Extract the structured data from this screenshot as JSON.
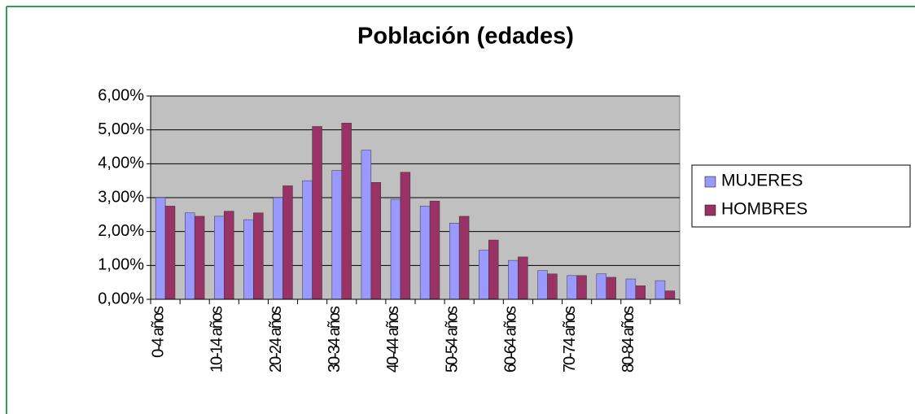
{
  "chart_data": {
    "type": "bar",
    "title": "Población (edades)",
    "categories": [
      "0-4 años",
      null,
      "10-14 años",
      null,
      "20-24 años",
      null,
      "30-34 años",
      null,
      "40-44 años",
      null,
      "50-54 años",
      null,
      "60-64 años",
      null,
      "70-74 años",
      null,
      "80-84 años",
      null
    ],
    "series": [
      {
        "name": "MUJERES",
        "color": "#9999ff",
        "values": [
          3.0,
          2.55,
          2.45,
          2.35,
          3.0,
          3.5,
          3.8,
          4.4,
          2.95,
          2.75,
          2.25,
          1.45,
          1.15,
          0.85,
          0.7,
          0.75,
          0.6,
          0.55
        ]
      },
      {
        "name": "HOMBRES",
        "color": "#993366",
        "values": [
          2.75,
          2.45,
          2.6,
          2.55,
          3.35,
          5.1,
          5.2,
          3.45,
          3.75,
          2.9,
          2.45,
          1.75,
          1.25,
          0.75,
          0.7,
          0.65,
          0.4,
          0.25
        ]
      }
    ],
    "ylim": [
      0,
      6
    ],
    "yticks": [
      {
        "value": 0,
        "label": "0,00%"
      },
      {
        "value": 1,
        "label": "1,00%"
      },
      {
        "value": 2,
        "label": "2,00%"
      },
      {
        "value": 3,
        "label": "3,00%"
      },
      {
        "value": 4,
        "label": "4,00%"
      },
      {
        "value": 5,
        "label": "5,00%"
      },
      {
        "value": 6,
        "label": "6,00%"
      }
    ],
    "grid": true,
    "legend": "right"
  }
}
